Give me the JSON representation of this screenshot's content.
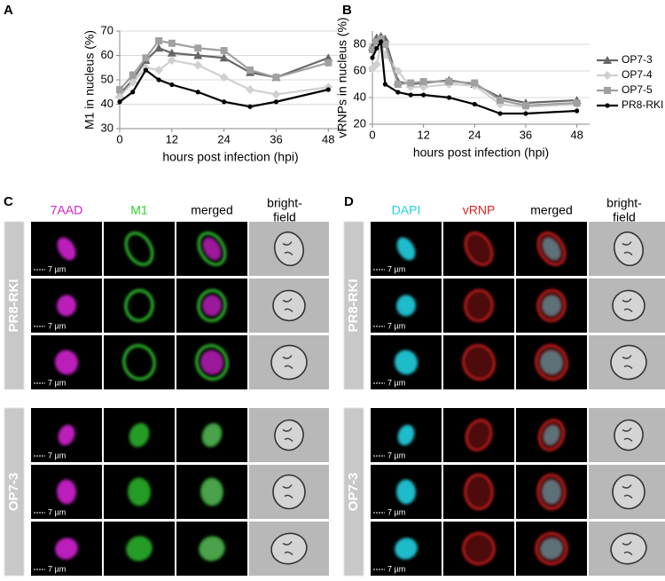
{
  "panel_labels": [
    "A",
    "B",
    "C",
    "D"
  ],
  "chart_data": [
    {
      "type": "line",
      "ylabel": "M1 in nucleus (%)",
      "xlabel": "hours post infection (hpi)",
      "x": [
        0,
        3,
        6,
        9,
        12,
        18,
        24,
        30,
        36,
        48
      ],
      "xlim": [
        0,
        51
      ],
      "xticks": [
        0,
        12,
        24,
        36,
        48
      ],
      "ylim": [
        30,
        70
      ],
      "yticks": [
        30,
        40,
        50,
        60,
        70
      ],
      "grid": true,
      "series": [
        {
          "color": "#666666",
          "marker": "triangle",
          "values": [
            44,
            50,
            58,
            63,
            61,
            60,
            59,
            53,
            51,
            59
          ]
        },
        {
          "color": "#d0d0d0",
          "marker": "diamond",
          "values": [
            43,
            49,
            55,
            54,
            58,
            56,
            51,
            46,
            44,
            47
          ]
        },
        {
          "color": "#a0a0a0",
          "marker": "square",
          "values": [
            46,
            52,
            59,
            66,
            65,
            63,
            62,
            54,
            51,
            57
          ]
        },
        {
          "color": "#000000",
          "marker": "circle",
          "values": [
            41,
            45,
            54,
            50,
            48,
            45,
            41,
            39,
            41,
            46
          ]
        }
      ]
    },
    {
      "type": "line",
      "ylabel": "vRNPs in nucleus (%)",
      "xlabel": "hours post infection (hpi)",
      "x": [
        0,
        1,
        2,
        3,
        6,
        9,
        12,
        18,
        24,
        30,
        36,
        48
      ],
      "xlim": [
        0,
        51
      ],
      "xticks": [
        0,
        12,
        24,
        36,
        48
      ],
      "ylim": [
        20,
        90
      ],
      "yticks": [
        20,
        40,
        60,
        80
      ],
      "grid": true,
      "legend": "right",
      "series": [
        {
          "name": "OP7-3",
          "color": "#666666",
          "marker": "triangle",
          "values": [
            78,
            85,
            86,
            84,
            52,
            50,
            51,
            53,
            50,
            40,
            36,
            38
          ]
        },
        {
          "name": "OP7-4",
          "color": "#d0d0d0",
          "marker": "diamond",
          "values": [
            62,
            65,
            80,
            72,
            60,
            48,
            48,
            50,
            49,
            35,
            33,
            35
          ]
        },
        {
          "name": "OP7-5",
          "color": "#a0a0a0",
          "marker": "square",
          "values": [
            76,
            82,
            84,
            80,
            50,
            51,
            52,
            52,
            51,
            38,
            34,
            36
          ]
        },
        {
          "name": "PR8-RKI",
          "color": "#000000",
          "marker": "circle",
          "values": [
            70,
            77,
            82,
            50,
            44,
            42,
            42,
            40,
            35,
            28,
            28,
            30
          ]
        }
      ]
    }
  ],
  "images": [
    {
      "columns": [
        [
          "7AAD"
        ],
        [
          "M1"
        ],
        [
          "merged"
        ],
        [
          "bright-",
          "field"
        ]
      ],
      "groups": [
        "PR8-RKI",
        "OP7-3"
      ]
    },
    {
      "columns": [
        [
          "DAPI"
        ],
        [
          "vRNP"
        ],
        [
          "merged"
        ],
        [
          "bright-",
          "field"
        ]
      ],
      "groups": [
        "PR8-RKI",
        "OP7-3"
      ]
    }
  ],
  "scale_bar": "7 µm"
}
